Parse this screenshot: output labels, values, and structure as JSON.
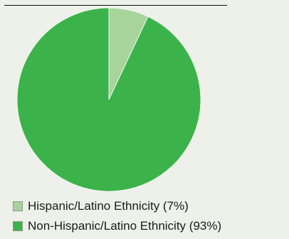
{
  "chart_data": {
    "type": "pie",
    "title": "",
    "slices": [
      {
        "label": "Hispanic/Latino Ethnicity (7%)",
        "value": 7,
        "color": "#a6d49a"
      },
      {
        "label": "Non-Hispanic/Latino Ethnicity (93%)",
        "value": 93,
        "color": "#3bb34a"
      }
    ],
    "start_angle_deg": 0,
    "direction": "clockwise",
    "legend_position": "bottom-left"
  }
}
